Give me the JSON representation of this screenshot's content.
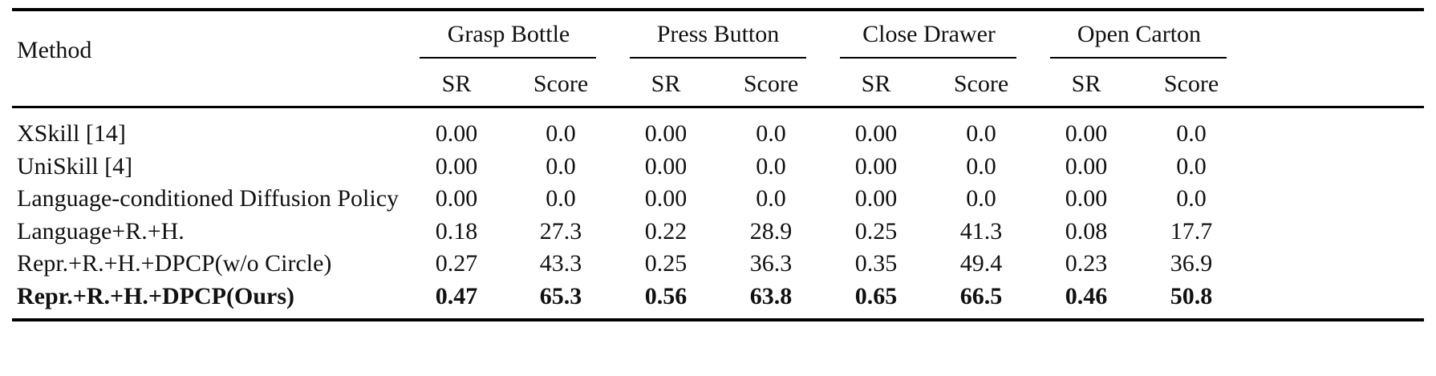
{
  "table": {
    "method_header": "Method",
    "groups": [
      {
        "label": "Grasp Bottle",
        "sub": [
          "SR",
          "Score"
        ]
      },
      {
        "label": "Press Button",
        "sub": [
          "SR",
          "Score"
        ]
      },
      {
        "label": "Close Drawer",
        "sub": [
          "SR",
          "Score"
        ]
      },
      {
        "label": "Open Carton",
        "sub": [
          "SR",
          "Score"
        ]
      }
    ],
    "rows": [
      {
        "method": "XSkill [14]",
        "values": [
          "0.00",
          "0.0",
          "0.00",
          "0.0",
          "0.00",
          "0.0",
          "0.00",
          "0.0"
        ],
        "bold": false
      },
      {
        "method": "UniSkill [4]",
        "values": [
          "0.00",
          "0.0",
          "0.00",
          "0.0",
          "0.00",
          "0.0",
          "0.00",
          "0.0"
        ],
        "bold": false
      },
      {
        "method": "Language-conditioned Diffusion Policy",
        "values": [
          "0.00",
          "0.0",
          "0.00",
          "0.0",
          "0.00",
          "0.0",
          "0.00",
          "0.0"
        ],
        "bold": false
      },
      {
        "method": "Language+R.+H.",
        "values": [
          "0.18",
          "27.3",
          "0.22",
          "28.9",
          "0.25",
          "41.3",
          "0.08",
          "17.7"
        ],
        "bold": false
      },
      {
        "method": "Repr.+R.+H.+DPCP(w/o Circle)",
        "values": [
          "0.27",
          "43.3",
          "0.25",
          "36.3",
          "0.35",
          "49.4",
          "0.23",
          "36.9"
        ],
        "bold": false
      },
      {
        "method": "Repr.+R.+H.+DPCP(Ours)",
        "values": [
          "0.47",
          "65.3",
          "0.56",
          "63.8",
          "0.65",
          "66.5",
          "0.46",
          "50.8"
        ],
        "bold": true
      }
    ]
  }
}
